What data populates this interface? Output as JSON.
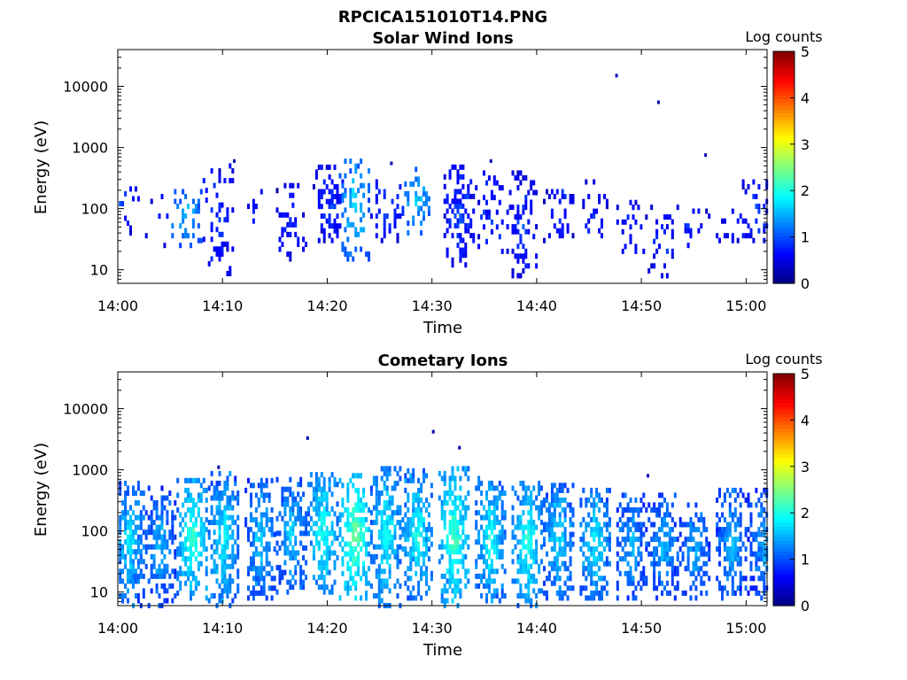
{
  "figure_title": "RPCICA151010T14.PNG",
  "colorbar_colors": [
    "#00007f",
    "#0000ff",
    "#007fff",
    "#00ffff",
    "#7fff7f",
    "#ffff00",
    "#ff7f00",
    "#ff0000",
    "#7f0000"
  ],
  "chart_data": [
    {
      "type": "heatmap",
      "title": "Solar Wind Ions",
      "xlabel": "Time",
      "ylabel": "Energy (eV)",
      "xticks": [
        "14:00",
        "14:10",
        "14:20",
        "14:30",
        "14:40",
        "14:50",
        "15:00"
      ],
      "xlim": [
        "14:00",
        "15:02"
      ],
      "yscale": "log",
      "ylim": [
        6,
        40000
      ],
      "yticks": [
        10,
        100,
        1000,
        10000
      ],
      "ytick_labels": [
        "10",
        "100",
        "1000",
        "10000"
      ],
      "colorbar": {
        "label": "Log counts",
        "min": 0,
        "max": 5,
        "ticks": [
          "0",
          "1",
          "2",
          "3",
          "4",
          "5"
        ]
      },
      "grid": false,
      "clusters": [
        {
          "t": 0.5,
          "e_lo": 40,
          "e_hi": 300,
          "log_counts": 0.9,
          "density": 0.3
        },
        {
          "t": 4.0,
          "e_lo": 25,
          "e_hi": 200,
          "log_counts": 0.8,
          "density": 0.12
        },
        {
          "t": 6.5,
          "e_lo": 25,
          "e_hi": 200,
          "log_counts": 1.7,
          "density": 0.45
        },
        {
          "t": 9.5,
          "e_lo": 6,
          "e_hi": 500,
          "log_counts": 0.9,
          "density": 0.3
        },
        {
          "t": 13.0,
          "e_lo": 30,
          "e_hi": 200,
          "log_counts": 0.8,
          "density": 0.12
        },
        {
          "t": 16.5,
          "e_lo": 15,
          "e_hi": 350,
          "log_counts": 0.8,
          "density": 0.3
        },
        {
          "t": 20.0,
          "e_lo": 30,
          "e_hi": 500,
          "log_counts": 0.9,
          "density": 0.55
        },
        {
          "t": 22.5,
          "e_lo": 15,
          "e_hi": 700,
          "log_counts": 1.8,
          "density": 0.5
        },
        {
          "t": 25.5,
          "e_lo": 30,
          "e_hi": 300,
          "log_counts": 0.9,
          "density": 0.35
        },
        {
          "t": 28.5,
          "e_lo": 40,
          "e_hi": 500,
          "log_counts": 1.6,
          "density": 0.45
        },
        {
          "t": 32.5,
          "e_lo": 12,
          "e_hi": 500,
          "log_counts": 0.95,
          "density": 0.6
        },
        {
          "t": 35.5,
          "e_lo": 20,
          "e_hi": 400,
          "log_counts": 0.9,
          "density": 0.35
        },
        {
          "t": 38.5,
          "e_lo": 8,
          "e_hi": 400,
          "log_counts": 0.9,
          "density": 0.5
        },
        {
          "t": 42.0,
          "e_lo": 30,
          "e_hi": 200,
          "log_counts": 0.9,
          "density": 0.35
        },
        {
          "t": 45.5,
          "e_lo": 30,
          "e_hi": 300,
          "log_counts": 0.8,
          "density": 0.3
        },
        {
          "t": 49.0,
          "e_lo": 20,
          "e_hi": 150,
          "log_counts": 0.8,
          "density": 0.2
        },
        {
          "t": 52.0,
          "e_lo": 8,
          "e_hi": 120,
          "log_counts": 0.8,
          "density": 0.2
        },
        {
          "t": 55.0,
          "e_lo": 25,
          "e_hi": 100,
          "log_counts": 0.8,
          "density": 0.2
        },
        {
          "t": 58.5,
          "e_lo": 30,
          "e_hi": 120,
          "log_counts": 0.8,
          "density": 0.25
        },
        {
          "t": 61.0,
          "e_lo": 30,
          "e_hi": 300,
          "log_counts": 1.0,
          "density": 0.4
        }
      ],
      "isolated_points": [
        {
          "t": 47.5,
          "e": 15000
        },
        {
          "t": 51.5,
          "e": 5500
        },
        {
          "t": 56.0,
          "e": 750
        },
        {
          "t": 11.0,
          "e": 600
        },
        {
          "t": 26.0,
          "e": 550
        },
        {
          "t": 35.5,
          "e": 600
        }
      ]
    },
    {
      "type": "heatmap",
      "title": "Cometary Ions",
      "xlabel": "Time",
      "ylabel": "Energy (eV)",
      "xticks": [
        "14:00",
        "14:10",
        "14:20",
        "14:30",
        "14:40",
        "14:50",
        "15:00"
      ],
      "xlim": [
        "14:00",
        "15:02"
      ],
      "yscale": "log",
      "ylim": [
        6,
        40000
      ],
      "yticks": [
        10,
        100,
        1000,
        10000
      ],
      "ytick_labels": [
        "10",
        "100",
        "1000",
        "10000"
      ],
      "colorbar": {
        "label": "Log counts",
        "min": 0,
        "max": 5,
        "ticks": [
          "0",
          "1",
          "2",
          "3",
          "4",
          "5"
        ]
      },
      "grid": false,
      "clusters": [
        {
          "t": 1.0,
          "e_lo": 6,
          "e_hi": 700,
          "log_counts": 1.8,
          "density": 0.85
        },
        {
          "t": 4.0,
          "e_lo": 6,
          "e_hi": 500,
          "log_counts": 1.6,
          "density": 0.75
        },
        {
          "t": 7.0,
          "e_lo": 8,
          "e_hi": 700,
          "log_counts": 2.2,
          "density": 0.85
        },
        {
          "t": 10.0,
          "e_lo": 6,
          "e_hi": 1000,
          "log_counts": 1.9,
          "density": 0.9
        },
        {
          "t": 13.5,
          "e_lo": 8,
          "e_hi": 700,
          "log_counts": 1.7,
          "density": 0.8
        },
        {
          "t": 16.5,
          "e_lo": 10,
          "e_hi": 700,
          "log_counts": 1.7,
          "density": 0.8
        },
        {
          "t": 19.5,
          "e_lo": 10,
          "e_hi": 900,
          "log_counts": 2.1,
          "density": 0.9
        },
        {
          "t": 22.5,
          "e_lo": 8,
          "e_hi": 900,
          "log_counts": 2.5,
          "density": 0.9
        },
        {
          "t": 25.5,
          "e_lo": 6,
          "e_hi": 1200,
          "log_counts": 2.0,
          "density": 0.85
        },
        {
          "t": 28.5,
          "e_lo": 8,
          "e_hi": 1000,
          "log_counts": 2.0,
          "density": 0.85
        },
        {
          "t": 32.0,
          "e_lo": 6,
          "e_hi": 1200,
          "log_counts": 2.3,
          "density": 0.95
        },
        {
          "t": 35.5,
          "e_lo": 6,
          "e_hi": 800,
          "log_counts": 2.0,
          "density": 0.9
        },
        {
          "t": 39.0,
          "e_lo": 6,
          "e_hi": 700,
          "log_counts": 2.1,
          "density": 0.9
        },
        {
          "t": 42.0,
          "e_lo": 8,
          "e_hi": 600,
          "log_counts": 1.8,
          "density": 0.85
        },
        {
          "t": 45.5,
          "e_lo": 8,
          "e_hi": 500,
          "log_counts": 1.9,
          "density": 0.85
        },
        {
          "t": 49.0,
          "e_lo": 8,
          "e_hi": 400,
          "log_counts": 1.6,
          "density": 0.8
        },
        {
          "t": 52.0,
          "e_lo": 8,
          "e_hi": 400,
          "log_counts": 1.6,
          "density": 0.8
        },
        {
          "t": 55.0,
          "e_lo": 8,
          "e_hi": 300,
          "log_counts": 1.5,
          "density": 0.75
        },
        {
          "t": 58.5,
          "e_lo": 8,
          "e_hi": 500,
          "log_counts": 1.6,
          "density": 0.8
        },
        {
          "t": 61.5,
          "e_lo": 8,
          "e_hi": 500,
          "log_counts": 1.5,
          "density": 0.75
        }
      ],
      "isolated_points": [
        {
          "t": 18.0,
          "e": 3300
        },
        {
          "t": 30.0,
          "e": 4200
        },
        {
          "t": 32.5,
          "e": 2300
        },
        {
          "t": 9.5,
          "e": 1100
        },
        {
          "t": 50.5,
          "e": 800
        }
      ]
    }
  ]
}
